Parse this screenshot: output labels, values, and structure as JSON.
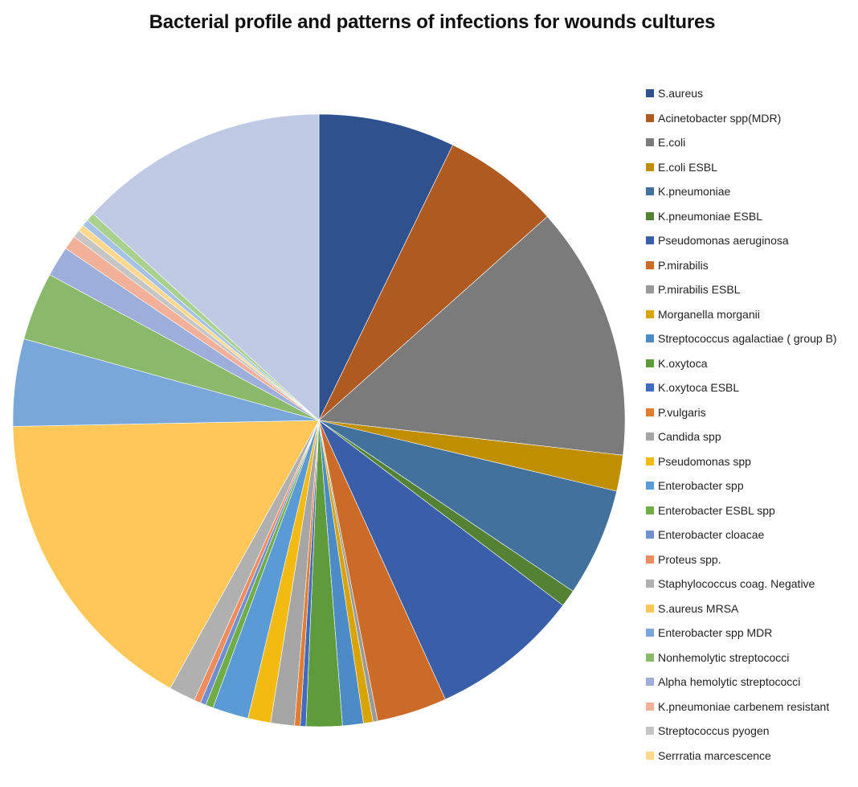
{
  "chart_data": {
    "type": "pie",
    "title": "Bacterial profile and patterns of infections  for wounds cultures",
    "legend_position": "right",
    "unit": "percent (estimated from slice angles)",
    "categories": [
      "S.aureus",
      "Acinetobacter spp(MDR)",
      "E.coli",
      "E.coli ESBL",
      "K.pneumoniae",
      "K.pneumoniae ESBL",
      "Pseudomonas aeruginosa",
      "P.mirabilis",
      "P.mirabilis ESBL",
      "Morganella morganii",
      "Streptococcus agalactiae ( group B)",
      "K.oxytoca",
      "K.oxytoca ESBL",
      "P.vulgaris",
      "Candida spp",
      "Pseudomonas spp",
      "Enterobacter spp",
      "Enterobacter ESBL spp",
      "Enterobacter cloacae",
      "Proteus spp.",
      "Staphylococcus coag. Negative",
      "S.aureus MRSA",
      "Enterobacter spp MDR",
      "Nonhemolytic streptococci",
      "Alpha hemolytic streptococci",
      "K.pneumoniae carbenem resistant",
      "Streptococcus pyogen",
      "Serrratia marcescence",
      "",
      "",
      ""
    ],
    "values": [
      7.2,
      6.2,
      13.4,
      1.9,
      5.7,
      0.9,
      7.9,
      3.7,
      0.25,
      0.5,
      1.1,
      1.9,
      0.3,
      0.3,
      1.25,
      1.2,
      1.9,
      0.4,
      0.3,
      0.35,
      1.4,
      16.6,
      4.6,
      3.6,
      1.6,
      0.75,
      0.4,
      0.35,
      0.35,
      0.45,
      13.2
    ],
    "colors": [
      "#2F528F",
      "#AE5A21",
      "#7B7B7B",
      "#BF8F00",
      "#41719C",
      "#548235",
      "#3A5FA8",
      "#CC6A28",
      "#999999",
      "#D9A400",
      "#4D8BC6",
      "#5E9B3C",
      "#3F6BC0",
      "#E07D30",
      "#A5A5A5",
      "#F3BA12",
      "#5B9BD5",
      "#70AD47",
      "#6E8FD2",
      "#F08C5E",
      "#B0B0B0",
      "#FFC658",
      "#79A7DA",
      "#8AB96C",
      "#9DAEDB",
      "#F2B099",
      "#C5C5C5",
      "#FFD88E",
      "#A4C2E6",
      "#A9D18E",
      "#C0C9E4"
    ]
  },
  "legend": {
    "items": [
      {
        "label": "S.aureus",
        "color": "#2F528F"
      },
      {
        "label": "Acinetobacter spp(MDR)",
        "color": "#AE5A21"
      },
      {
        "label": "E.coli",
        "color": "#7B7B7B"
      },
      {
        "label": "E.coli ESBL",
        "color": "#BF8F00"
      },
      {
        "label": "K.pneumoniae",
        "color": "#41719C"
      },
      {
        "label": "K.pneumoniae ESBL",
        "color": "#548235"
      },
      {
        "label": "Pseudomonas aeruginosa",
        "color": "#3A5FA8"
      },
      {
        "label": "P.mirabilis",
        "color": "#CC6A28"
      },
      {
        "label": "P.mirabilis ESBL",
        "color": "#999999"
      },
      {
        "label": "Morganella morganii",
        "color": "#D9A400"
      },
      {
        "label": "Streptococcus agalactiae ( group B)",
        "color": "#4D8BC6"
      },
      {
        "label": "K.oxytoca",
        "color": "#5E9B3C"
      },
      {
        "label": "K.oxytoca ESBL",
        "color": "#3F6BC0"
      },
      {
        "label": "P.vulgaris",
        "color": "#E07D30"
      },
      {
        "label": "Candida spp",
        "color": "#A5A5A5"
      },
      {
        "label": "Pseudomonas spp",
        "color": "#F3BA12"
      },
      {
        "label": "Enterobacter spp",
        "color": "#5B9BD5"
      },
      {
        "label": "Enterobacter ESBL spp",
        "color": "#70AD47"
      },
      {
        "label": "Enterobacter cloacae",
        "color": "#6E8FD2"
      },
      {
        "label": "Proteus spp.",
        "color": "#F08C5E"
      },
      {
        "label": "Staphylococcus coag. Negative",
        "color": "#B0B0B0"
      },
      {
        "label": "S.aureus MRSA",
        "color": "#FFC658"
      },
      {
        "label": "Enterobacter spp MDR",
        "color": "#79A7DA"
      },
      {
        "label": "Nonhemolytic streptococci",
        "color": "#8AB96C"
      },
      {
        "label": "Alpha hemolytic streptococci",
        "color": "#9DAEDB"
      },
      {
        "label": "K.pneumoniae carbenem resistant",
        "color": "#F2B099"
      },
      {
        "label": "Streptococcus pyogen",
        "color": "#C5C5C5"
      },
      {
        "label": "Serrratia marcescence",
        "color": "#FFD88E"
      }
    ]
  }
}
